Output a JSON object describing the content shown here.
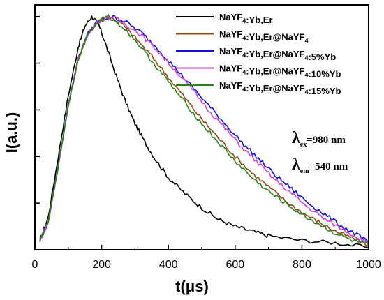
{
  "chart_data": {
    "type": "line",
    "xlabel_main": "t",
    "xlabel_unit": "(μs)",
    "ylabel": "I(a.u.)",
    "xlim": [
      0,
      1000
    ],
    "ylim": [
      0,
      1.05
    ],
    "xticks": [
      0,
      200,
      400,
      600,
      800,
      1000
    ],
    "grid": false,
    "legend_position": "top-right",
    "annotations": [
      {
        "symbol": "λ",
        "sub": "ex",
        "value": "=980 nm"
      },
      {
        "symbol": "λ",
        "sub": "em",
        "value": "=540 nm"
      }
    ],
    "series": [
      {
        "name": {
          "base": "NaYF",
          "sub": "4",
          "rest": ":Yb,Er"
        },
        "color": "#000000",
        "points": [
          [
            15,
            0.04
          ],
          [
            40,
            0.14
          ],
          [
            70,
            0.4
          ],
          [
            100,
            0.66
          ],
          [
            130,
            0.87
          ],
          [
            150,
            0.96
          ],
          [
            170,
            1.0
          ],
          [
            190,
            0.97
          ],
          [
            210,
            0.89
          ],
          [
            240,
            0.76
          ],
          [
            270,
            0.64
          ],
          [
            300,
            0.54
          ],
          [
            330,
            0.46
          ],
          [
            360,
            0.39
          ],
          [
            400,
            0.31
          ],
          [
            450,
            0.24
          ],
          [
            500,
            0.18
          ],
          [
            550,
            0.13
          ],
          [
            600,
            0.1
          ],
          [
            650,
            0.08
          ],
          [
            700,
            0.06
          ],
          [
            800,
            0.04
          ],
          [
            900,
            0.03
          ],
          [
            1000,
            0.01
          ]
        ]
      },
      {
        "name": {
          "base": "NaYF",
          "sub": "4",
          "rest": ":Yb,Er@NaYF",
          "sub2": "4",
          "rest2": ""
        },
        "color": "#8B4A18",
        "points": [
          [
            15,
            0.04
          ],
          [
            40,
            0.12
          ],
          [
            70,
            0.36
          ],
          [
            100,
            0.62
          ],
          [
            130,
            0.82
          ],
          [
            160,
            0.93
          ],
          [
            190,
            0.98
          ],
          [
            220,
            1.0
          ],
          [
            260,
            0.97
          ],
          [
            300,
            0.91
          ],
          [
            350,
            0.83
          ],
          [
            400,
            0.74
          ],
          [
            450,
            0.65
          ],
          [
            500,
            0.56
          ],
          [
            550,
            0.48
          ],
          [
            600,
            0.4
          ],
          [
            650,
            0.33
          ],
          [
            700,
            0.27
          ],
          [
            750,
            0.21
          ],
          [
            800,
            0.16
          ],
          [
            850,
            0.12
          ],
          [
            900,
            0.08
          ],
          [
            950,
            0.05
          ],
          [
            1000,
            0.02
          ]
        ]
      },
      {
        "name": {
          "base": "NaYF",
          "sub": "4",
          "rest": ":Yb,Er@NaYF",
          "sub2": "4",
          "rest2": ":5%Yb"
        },
        "color": "#1010D8",
        "points": [
          [
            15,
            0.04
          ],
          [
            40,
            0.12
          ],
          [
            70,
            0.36
          ],
          [
            100,
            0.62
          ],
          [
            130,
            0.82
          ],
          [
            160,
            0.93
          ],
          [
            190,
            0.98
          ],
          [
            230,
            1.0
          ],
          [
            270,
            0.98
          ],
          [
            320,
            0.93
          ],
          [
            370,
            0.86
          ],
          [
            420,
            0.78
          ],
          [
            470,
            0.7
          ],
          [
            520,
            0.62
          ],
          [
            570,
            0.54
          ],
          [
            620,
            0.46
          ],
          [
            670,
            0.39
          ],
          [
            720,
            0.32
          ],
          [
            770,
            0.26
          ],
          [
            820,
            0.2
          ],
          [
            870,
            0.15
          ],
          [
            920,
            0.1
          ],
          [
            970,
            0.06
          ],
          [
            1000,
            0.03
          ]
        ]
      },
      {
        "name": {
          "base": "NaYF",
          "sub": "4",
          "rest": ":Yb,Er@NaYF",
          "sub2": "4",
          "rest2": ":10%Yb"
        },
        "color": "#D040D8",
        "points": [
          [
            15,
            0.04
          ],
          [
            40,
            0.12
          ],
          [
            70,
            0.36
          ],
          [
            100,
            0.62
          ],
          [
            130,
            0.82
          ],
          [
            160,
            0.93
          ],
          [
            190,
            0.98
          ],
          [
            230,
            1.0
          ],
          [
            270,
            0.97
          ],
          [
            320,
            0.92
          ],
          [
            370,
            0.85
          ],
          [
            420,
            0.77
          ],
          [
            470,
            0.69
          ],
          [
            520,
            0.6
          ],
          [
            570,
            0.52
          ],
          [
            620,
            0.44
          ],
          [
            670,
            0.37
          ],
          [
            720,
            0.3
          ],
          [
            770,
            0.24
          ],
          [
            820,
            0.18
          ],
          [
            870,
            0.13
          ],
          [
            920,
            0.09
          ],
          [
            970,
            0.05
          ],
          [
            1000,
            0.03
          ]
        ]
      },
      {
        "name": {
          "base": "NaYF",
          "sub": "4",
          "rest": ":Yb,Er@NaYF",
          "sub2": "4",
          "rest2": ":15%Yb"
        },
        "color": "#2E7D1E",
        "points": [
          [
            15,
            0.04
          ],
          [
            40,
            0.12
          ],
          [
            70,
            0.36
          ],
          [
            100,
            0.62
          ],
          [
            130,
            0.82
          ],
          [
            160,
            0.93
          ],
          [
            190,
            0.98
          ],
          [
            220,
            1.0
          ],
          [
            260,
            0.96
          ],
          [
            300,
            0.9
          ],
          [
            350,
            0.81
          ],
          [
            400,
            0.72
          ],
          [
            450,
            0.63
          ],
          [
            500,
            0.54
          ],
          [
            550,
            0.46
          ],
          [
            600,
            0.38
          ],
          [
            650,
            0.31
          ],
          [
            700,
            0.25
          ],
          [
            750,
            0.2
          ],
          [
            800,
            0.15
          ],
          [
            850,
            0.11
          ],
          [
            900,
            0.07
          ],
          [
            950,
            0.04
          ],
          [
            1000,
            0.02
          ]
        ]
      }
    ]
  }
}
